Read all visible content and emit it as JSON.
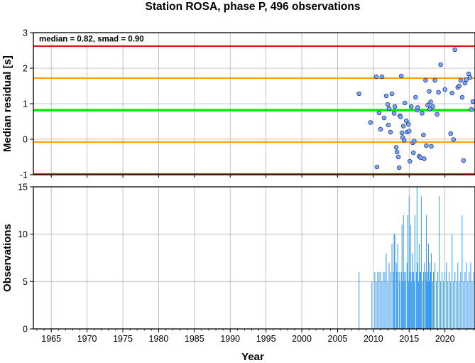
{
  "title": "Station ROSA, phase P, 496 observations",
  "chart_data": [
    {
      "type": "scatter",
      "ylabel": "Median residual [s]",
      "annotation": "median = 0.82, smad = 0.90",
      "xlim": [
        1962.5,
        2024.2
      ],
      "ylim": [
        -1,
        3
      ],
      "xticks": [
        1965,
        1970,
        1975,
        1980,
        1985,
        1990,
        1995,
        2000,
        2005,
        2010,
        2015,
        2020
      ],
      "yticks": [
        -1,
        0,
        1,
        2,
        3
      ],
      "grid": true,
      "reference_lines": [
        {
          "y": 2.62,
          "color": "#ee1111"
        },
        {
          "y": 1.72,
          "color": "#ffa500"
        },
        {
          "y": 0.82,
          "color": "#00ee00"
        },
        {
          "y": -0.08,
          "color": "#ffa500"
        },
        {
          "y": -0.98,
          "color": "#ee1111"
        }
      ],
      "marker_color": "#77aaff",
      "points": [
        [
          2008.0,
          1.28
        ],
        [
          2009.6,
          0.47
        ],
        [
          2010.4,
          1.76
        ],
        [
          2010.5,
          -0.78
        ],
        [
          2010.8,
          0.74
        ],
        [
          2011.0,
          0.28
        ],
        [
          2011.2,
          1.76
        ],
        [
          2011.5,
          0.6
        ],
        [
          2011.8,
          1.22
        ],
        [
          2012.0,
          0.98
        ],
        [
          2012.1,
          0.4
        ],
        [
          2012.2,
          0.86
        ],
        [
          2012.4,
          0.2
        ],
        [
          2012.6,
          1.28
        ],
        [
          2012.9,
          0.73
        ],
        [
          2013.0,
          0.92
        ],
        [
          2013.2,
          -0.23
        ],
        [
          2013.3,
          -0.36
        ],
        [
          2013.5,
          -0.5
        ],
        [
          2013.6,
          -0.8
        ],
        [
          2013.7,
          0.66
        ],
        [
          2013.8,
          0.63
        ],
        [
          2013.9,
          1.78
        ],
        [
          2014.0,
          0.18
        ],
        [
          2014.1,
          0.05
        ],
        [
          2014.2,
          0.37
        ],
        [
          2014.3,
          -0.03
        ],
        [
          2014.4,
          1.02
        ],
        [
          2014.6,
          0.52
        ],
        [
          2014.7,
          0.2
        ],
        [
          2014.9,
          0.42
        ],
        [
          2015.0,
          0.23
        ],
        [
          2015.1,
          -0.62
        ],
        [
          2015.3,
          0.92
        ],
        [
          2015.5,
          -0.1
        ],
        [
          2015.6,
          -0.38
        ],
        [
          2015.7,
          -0.05
        ],
        [
          2015.9,
          1.18
        ],
        [
          2016.1,
          0.82
        ],
        [
          2016.2,
          0.89
        ],
        [
          2016.4,
          -0.48
        ],
        [
          2016.6,
          -0.52
        ],
        [
          2016.8,
          0.73
        ],
        [
          2017.0,
          0.12
        ],
        [
          2017.1,
          -0.55
        ],
        [
          2017.3,
          1.66
        ],
        [
          2017.4,
          -0.18
        ],
        [
          2017.6,
          0.96
        ],
        [
          2017.8,
          1.35
        ],
        [
          2017.9,
          0.85
        ],
        [
          2018.0,
          1.05
        ],
        [
          2018.1,
          -0.2
        ],
        [
          2018.3,
          0.92
        ],
        [
          2018.6,
          1.66
        ],
        [
          2018.9,
          0.7
        ],
        [
          2019.1,
          1.32
        ],
        [
          2019.4,
          2.1
        ],
        [
          2020.0,
          1.4
        ],
        [
          2020.8,
          0.16
        ],
        [
          2021.0,
          1.3
        ],
        [
          2021.2,
          -0.01
        ],
        [
          2021.4,
          2.52
        ],
        [
          2021.8,
          1.46
        ],
        [
          2022.0,
          1.5
        ],
        [
          2022.2,
          1.66
        ],
        [
          2022.4,
          1.18
        ],
        [
          2022.6,
          -0.6
        ],
        [
          2022.8,
          1.58
        ],
        [
          2023.0,
          1.68
        ],
        [
          2023.3,
          1.84
        ],
        [
          2023.5,
          1.74
        ],
        [
          2023.7,
          0.84
        ],
        [
          2023.9,
          1.06
        ]
      ]
    },
    {
      "type": "bar",
      "xlabel": "Year",
      "ylabel": "Observations",
      "xlim": [
        1962.5,
        2024.2
      ],
      "ylim": [
        0,
        15
      ],
      "xticks": [
        1965,
        1970,
        1975,
        1980,
        1985,
        1990,
        1995,
        2000,
        2005,
        2010,
        2015,
        2020
      ],
      "yticks": [
        0,
        5,
        10,
        15
      ],
      "grid": true,
      "bar_color": "#3399ee",
      "bars": [
        [
          2008.0,
          6
        ],
        [
          2009.8,
          5
        ],
        [
          2010.2,
          6
        ],
        [
          2010.4,
          5
        ],
        [
          2010.6,
          6
        ],
        [
          2010.8,
          6
        ],
        [
          2011.0,
          6
        ],
        [
          2011.2,
          5
        ],
        [
          2011.4,
          6
        ],
        [
          2011.6,
          6
        ],
        [
          2011.8,
          8
        ],
        [
          2012.0,
          5
        ],
        [
          2012.2,
          7
        ],
        [
          2012.4,
          6
        ],
        [
          2012.6,
          9
        ],
        [
          2012.8,
          6
        ],
        [
          2012.9,
          10
        ],
        [
          2013.0,
          10
        ],
        [
          2013.2,
          7
        ],
        [
          2013.3,
          6
        ],
        [
          2013.4,
          9
        ],
        [
          2013.6,
          6
        ],
        [
          2013.7,
          5
        ],
        [
          2013.9,
          6
        ],
        [
          2014.0,
          11
        ],
        [
          2014.1,
          5
        ],
        [
          2014.2,
          12
        ],
        [
          2014.3,
          6
        ],
        [
          2014.4,
          5
        ],
        [
          2014.5,
          6
        ],
        [
          2014.7,
          7
        ],
        [
          2014.8,
          12
        ],
        [
          2014.9,
          5
        ],
        [
          2015.0,
          14
        ],
        [
          2015.1,
          6
        ],
        [
          2015.2,
          11
        ],
        [
          2015.3,
          5
        ],
        [
          2015.4,
          6
        ],
        [
          2015.5,
          8
        ],
        [
          2015.6,
          6
        ],
        [
          2015.7,
          5
        ],
        [
          2015.8,
          12
        ],
        [
          2016.0,
          6
        ],
        [
          2016.1,
          15
        ],
        [
          2016.2,
          7
        ],
        [
          2016.3,
          5
        ],
        [
          2016.4,
          9
        ],
        [
          2016.5,
          6
        ],
        [
          2016.6,
          6
        ],
        [
          2016.7,
          14
        ],
        [
          2016.9,
          5
        ],
        [
          2017.0,
          6
        ],
        [
          2017.1,
          7
        ],
        [
          2017.3,
          6
        ],
        [
          2017.4,
          12
        ],
        [
          2017.5,
          5
        ],
        [
          2017.6,
          6
        ],
        [
          2017.7,
          9
        ],
        [
          2017.8,
          5
        ],
        [
          2017.9,
          7
        ],
        [
          2018.0,
          6
        ],
        [
          2018.1,
          8
        ],
        [
          2018.3,
          5
        ],
        [
          2018.4,
          6
        ],
        [
          2018.6,
          7
        ],
        [
          2018.8,
          5
        ],
        [
          2019.0,
          6
        ],
        [
          2019.2,
          14
        ],
        [
          2019.4,
          5
        ],
        [
          2019.6,
          6
        ],
        [
          2019.8,
          5
        ],
        [
          2020.0,
          6
        ],
        [
          2020.2,
          7
        ],
        [
          2020.4,
          5
        ],
        [
          2020.6,
          6
        ],
        [
          2020.8,
          5
        ],
        [
          2021.0,
          10
        ],
        [
          2021.2,
          5
        ],
        [
          2021.4,
          6
        ],
        [
          2021.6,
          5
        ],
        [
          2021.8,
          7
        ],
        [
          2022.0,
          5
        ],
        [
          2022.2,
          6
        ],
        [
          2022.4,
          12
        ],
        [
          2022.6,
          5
        ],
        [
          2022.8,
          6
        ],
        [
          2023.0,
          7
        ],
        [
          2023.2,
          5
        ],
        [
          2023.4,
          6
        ],
        [
          2023.6,
          7
        ],
        [
          2023.8,
          5
        ],
        [
          2024.0,
          6
        ]
      ]
    }
  ]
}
